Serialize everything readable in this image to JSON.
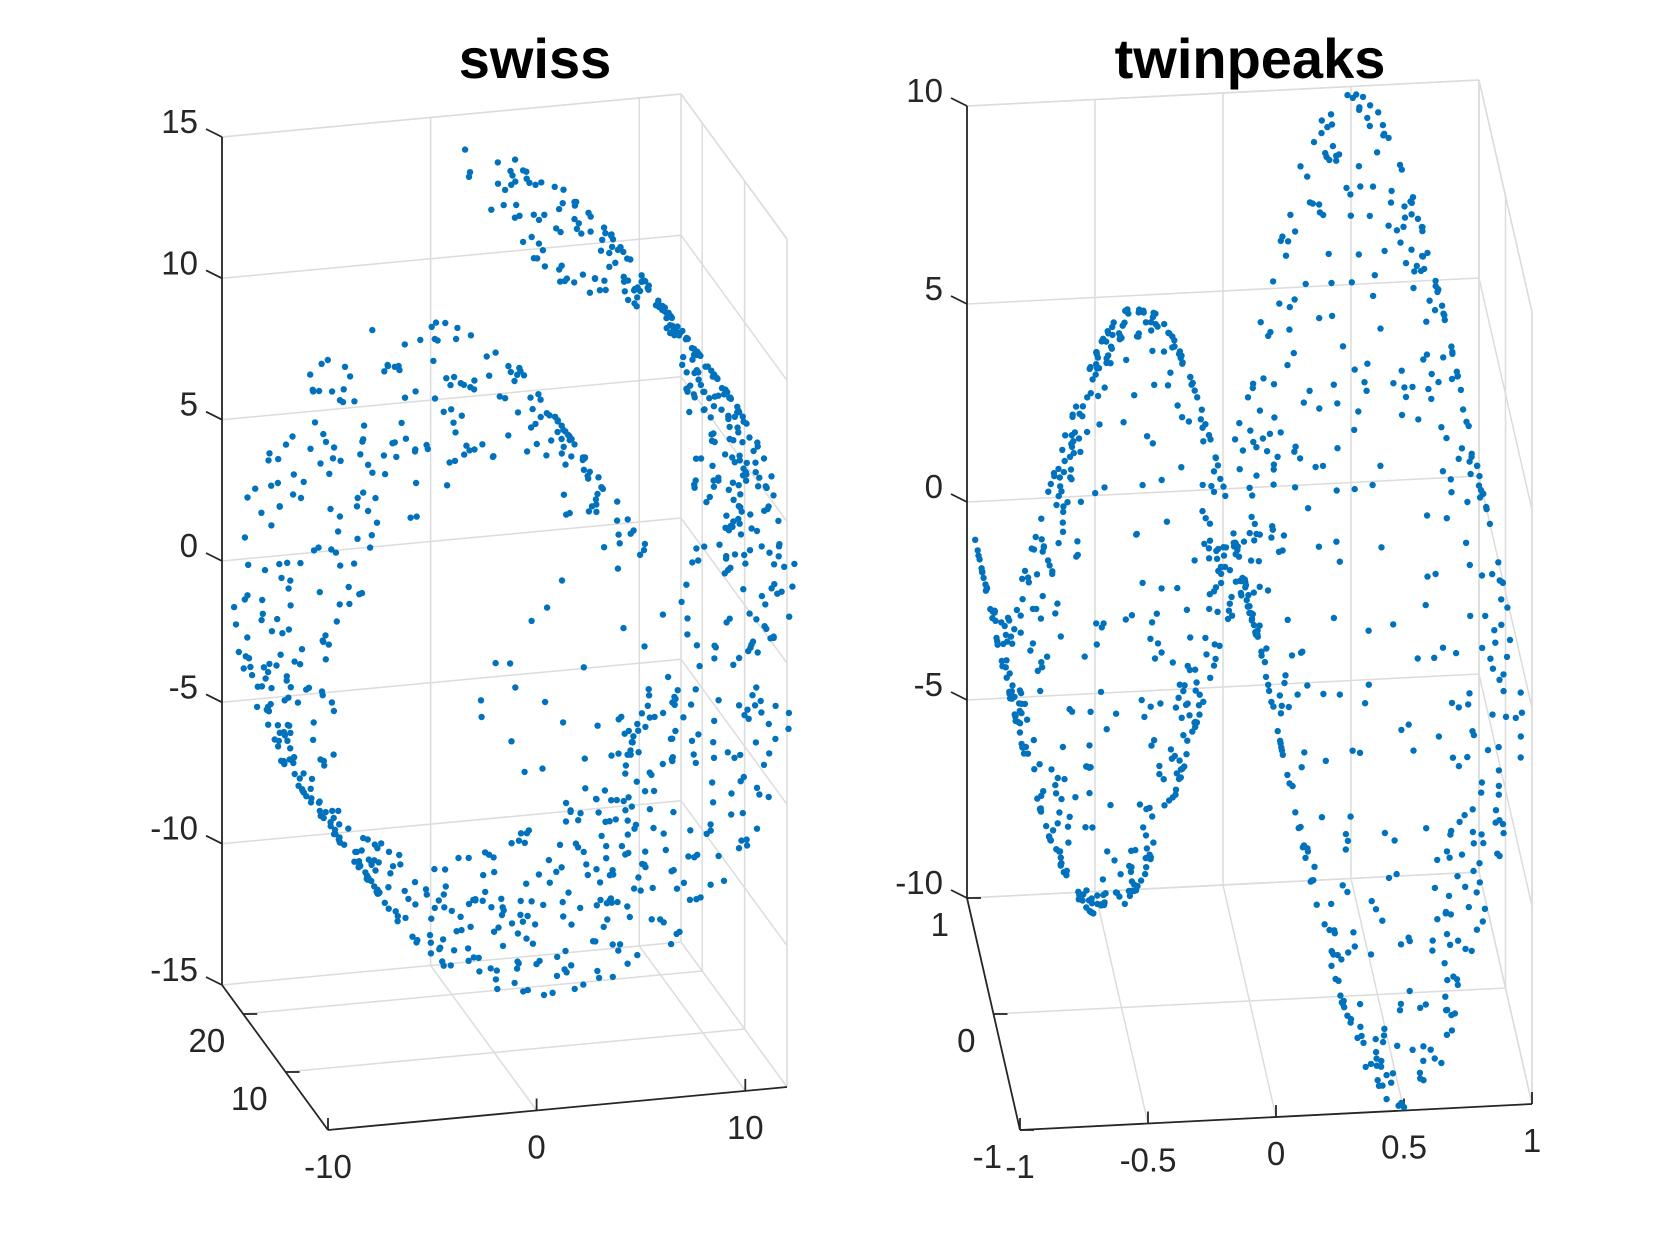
{
  "chart_data": [
    {
      "type": "scatter3d",
      "title": "swiss",
      "axes": {
        "x": {
          "range": [
            -10,
            12
          ],
          "ticks": [
            -10,
            0,
            10
          ],
          "tick_labels": [
            "-10",
            "0",
            "10"
          ]
        },
        "y": {
          "range": [
            0,
            25
          ],
          "ticks": [
            10,
            20
          ],
          "tick_labels": [
            "10",
            "20"
          ]
        },
        "z": {
          "range": [
            -15,
            15
          ],
          "ticks": [
            -15,
            -10,
            -5,
            0,
            5,
            10,
            15
          ],
          "tick_labels": [
            "-15",
            "-10",
            "-5",
            "0",
            "5",
            "10",
            "15"
          ]
        }
      },
      "grid": true,
      "marker_color": "#0072bd",
      "generator": {
        "kind": "swiss-roll",
        "count": 1000,
        "t_range": [
          4.7,
          14.1
        ],
        "height_range": [
          0,
          25
        ],
        "seed": 7
      }
    },
    {
      "type": "scatter3d",
      "title": "twinpeaks",
      "axes": {
        "x": {
          "range": [
            -1,
            1
          ],
          "ticks": [
            -1,
            -0.5,
            0,
            0.5,
            1
          ],
          "tick_labels": [
            "-1",
            "-0.5",
            "0",
            "0.5",
            "1"
          ]
        },
        "y": {
          "range": [
            -1,
            1
          ],
          "ticks": [
            -1,
            0,
            1
          ],
          "tick_labels": [
            "-1",
            "0",
            "1"
          ]
        },
        "z": {
          "range": [
            -10,
            10
          ],
          "ticks": [
            -10,
            -5,
            0,
            5,
            10
          ],
          "tick_labels": [
            "-10",
            "-5",
            "0",
            "5",
            "10"
          ]
        }
      },
      "grid": true,
      "marker_color": "#0072bd",
      "generator": {
        "kind": "twin-peaks",
        "count": 1000,
        "amplitude": 10,
        "seed": 11
      }
    }
  ]
}
